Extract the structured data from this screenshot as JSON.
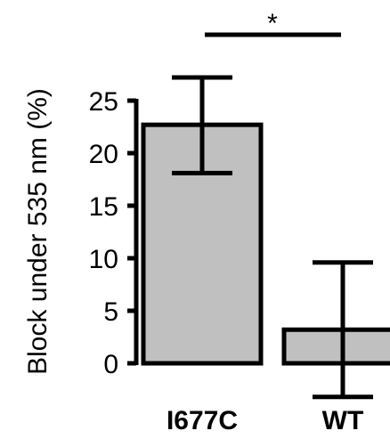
{
  "chart_data": {
    "type": "bar",
    "title": "",
    "xlabel": "",
    "ylabel": "Block under 535 nm (%)",
    "categories": [
      "I677C",
      "WT"
    ],
    "values": [
      22.7,
      3.2
    ],
    "error_upper": [
      27.2,
      9.6
    ],
    "error_lower": [
      18.1,
      -3.2
    ],
    "ylim": [
      0,
      25
    ],
    "yticks": [
      0,
      5,
      10,
      15,
      20,
      25
    ],
    "grid": false,
    "bar_color": "#c0c0c0",
    "edge_color": "#000000",
    "significance": {
      "between": [
        "I677C",
        "WT"
      ],
      "label": "*"
    }
  }
}
